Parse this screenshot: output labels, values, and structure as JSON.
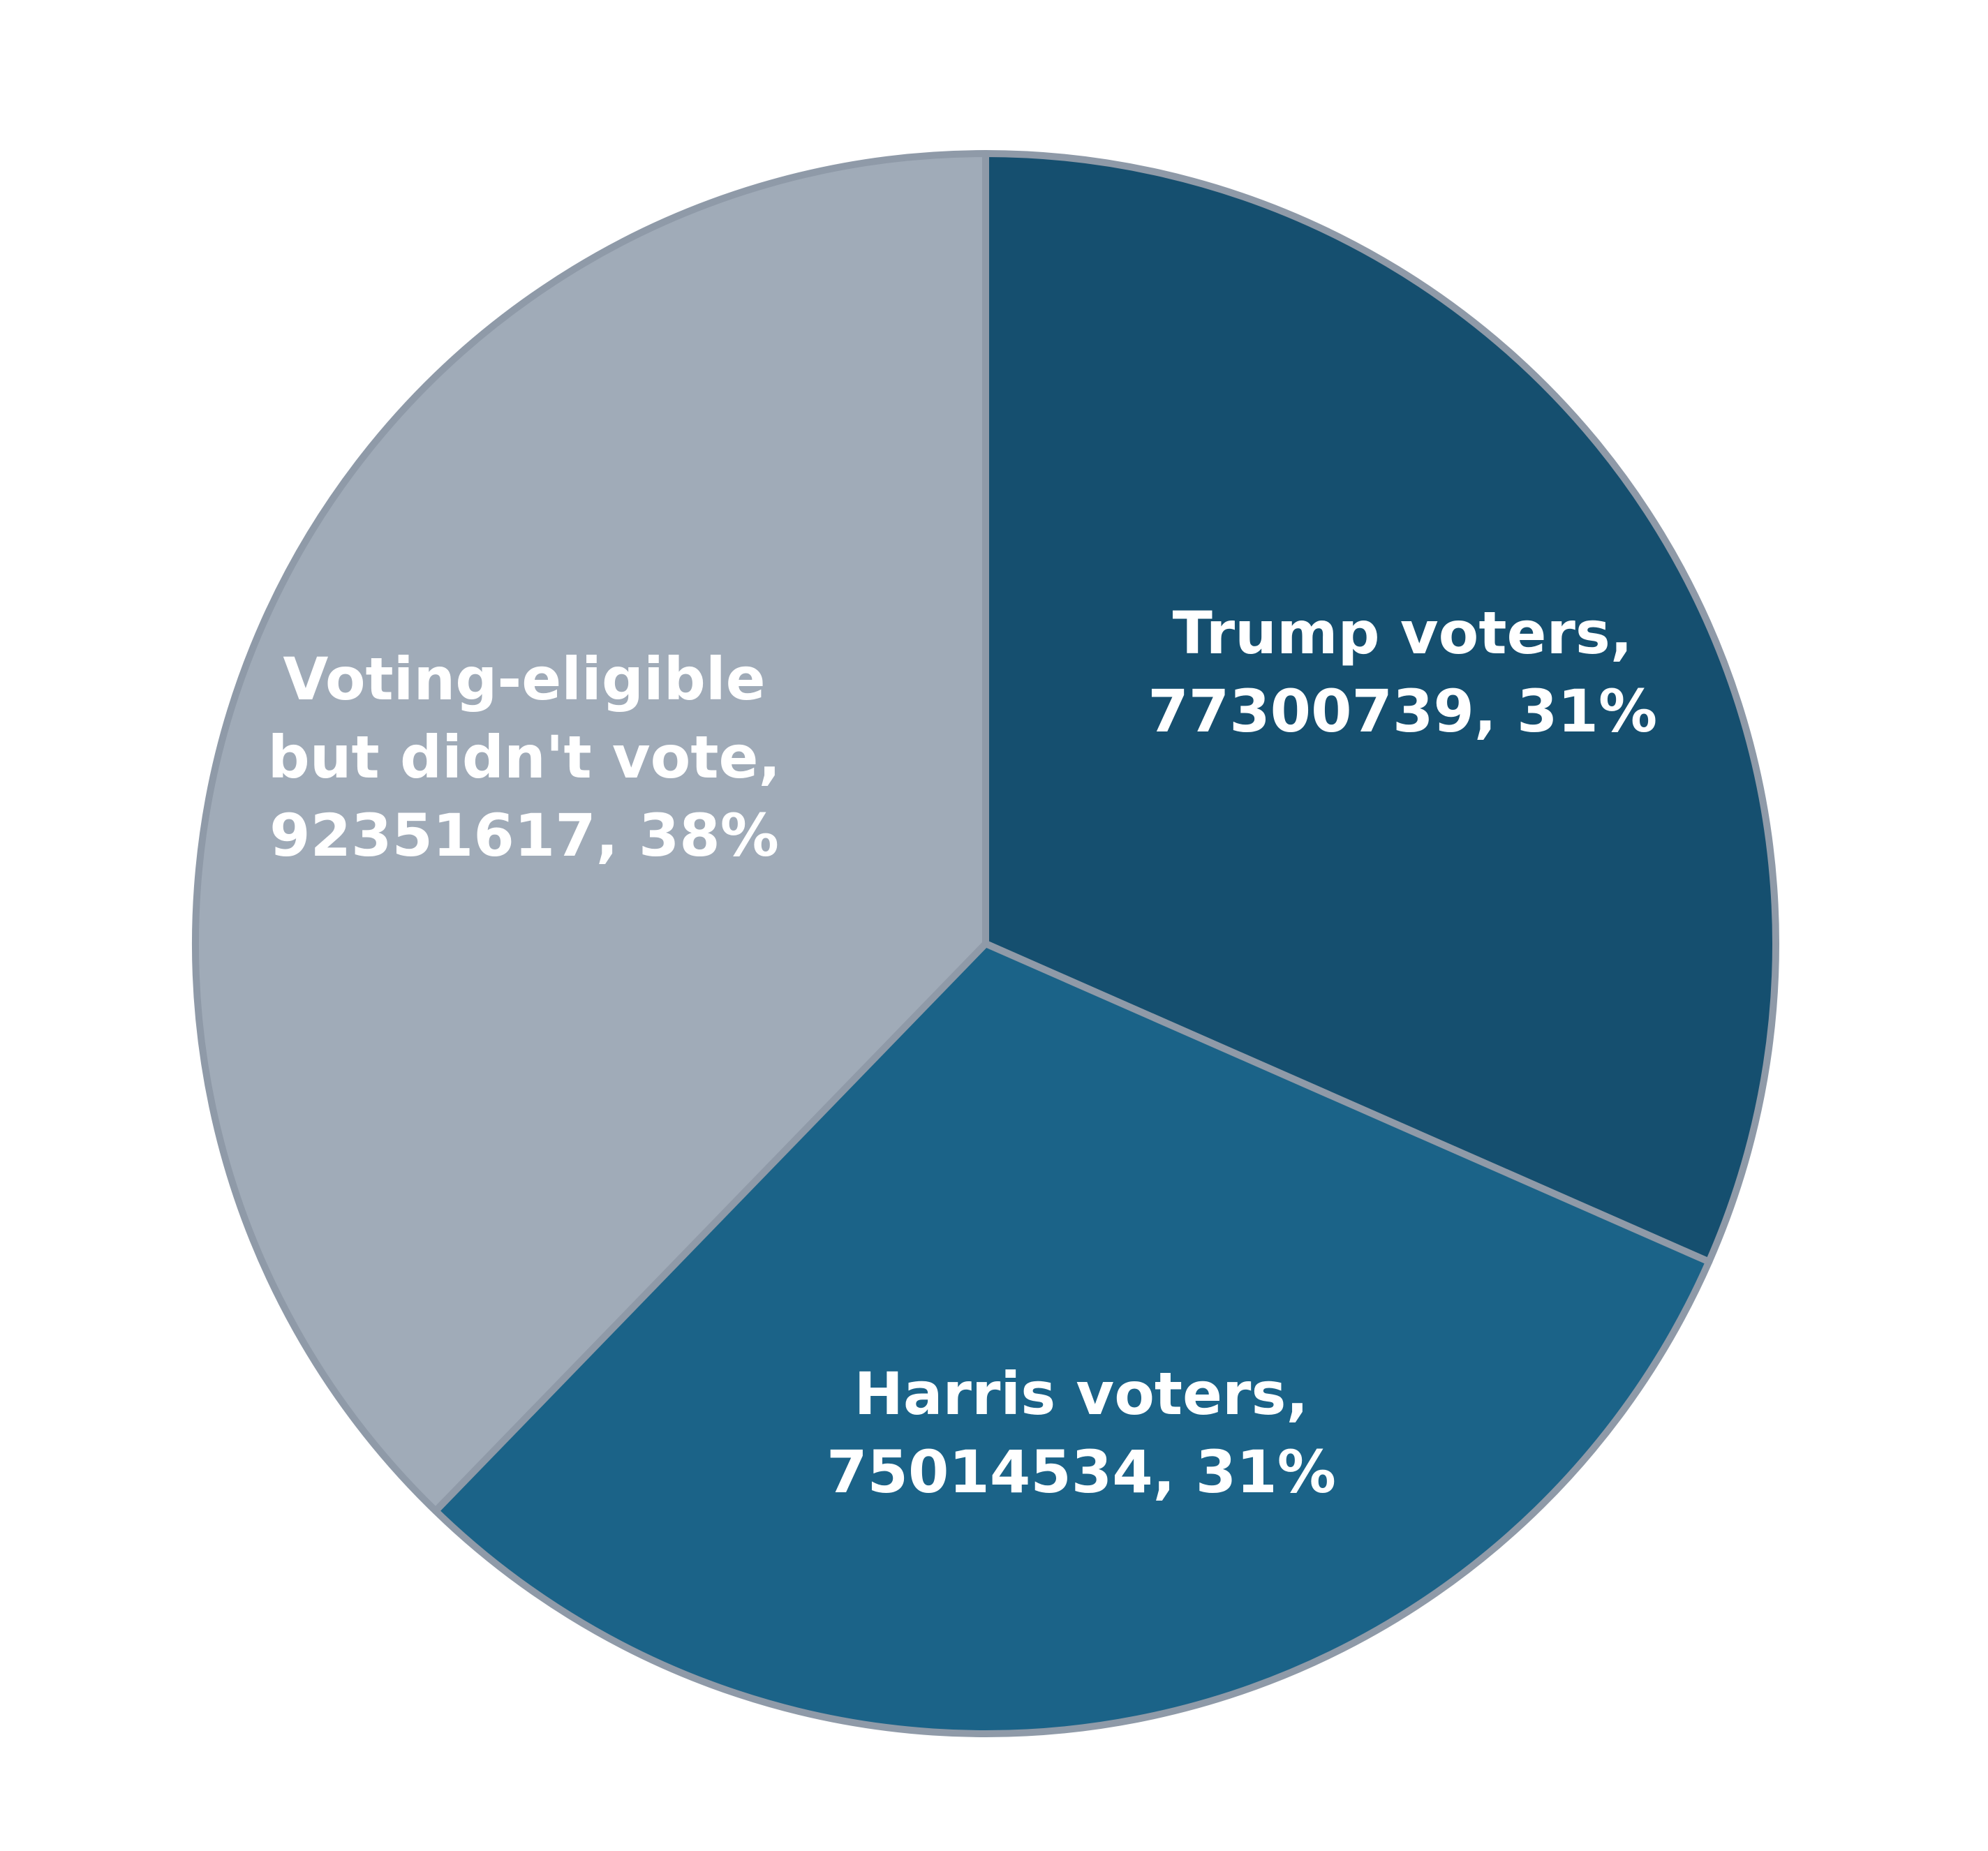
{
  "chart_data": {
    "type": "pie",
    "title": "",
    "start_angle_deg": 0,
    "direction": "clockwise",
    "slices": [
      {
        "name": "Trump voters",
        "value": 77300739,
        "percent_label": "31%",
        "label_lines": [
          "Trump voters,",
          "77300739, 31%"
        ],
        "color": "#154f6f"
      },
      {
        "name": "Harris voters",
        "value": 75014534,
        "percent_label": "31%",
        "label_lines": [
          "Harris voters,",
          "75014534, 31%"
        ],
        "color": "#1b6388"
      },
      {
        "name": "Voting-eligible but didn't vote",
        "value": 92351617,
        "percent_label": "38%",
        "label_lines": [
          "Voting-eligible",
          "but didn't vote,",
          "92351617, 38%"
        ],
        "color": "#a0abb8"
      }
    ]
  }
}
